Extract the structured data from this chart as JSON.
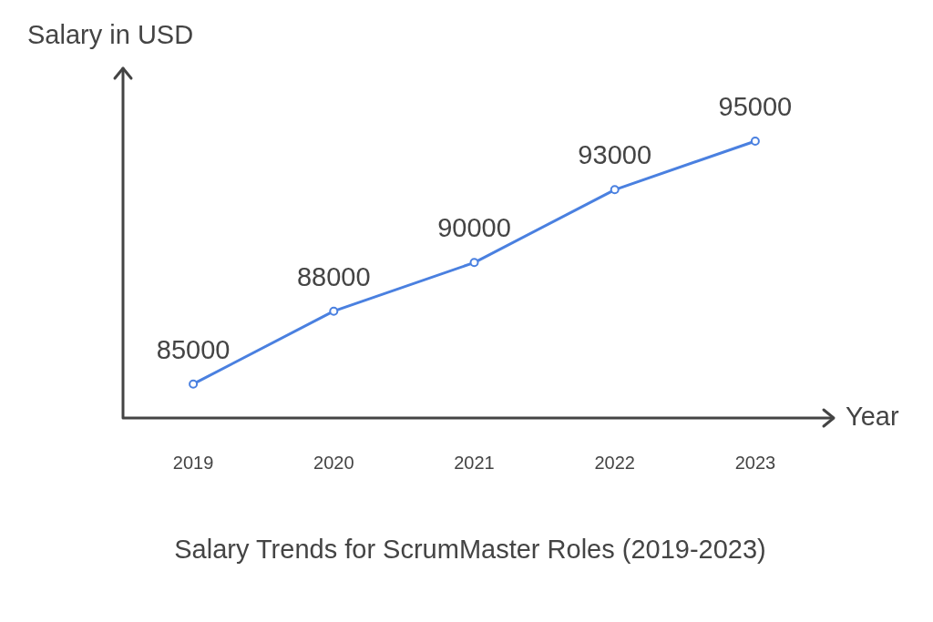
{
  "chart_data": {
    "type": "line",
    "title": "Salary Trends for ScrumMaster Roles (2019-2023)",
    "xlabel": "Year",
    "ylabel": "Salary in USD",
    "categories": [
      "2019",
      "2020",
      "2021",
      "2022",
      "2023"
    ],
    "series": [
      {
        "color": "#4a80e0",
        "values": [
          85000,
          88000,
          90000,
          93000,
          95000
        ]
      }
    ],
    "ylim": [
      83600,
      98000
    ],
    "data_labels": true,
    "marker": "circle",
    "line_style": "solid",
    "grid": false,
    "legend": false,
    "tick_labels": "x"
  }
}
